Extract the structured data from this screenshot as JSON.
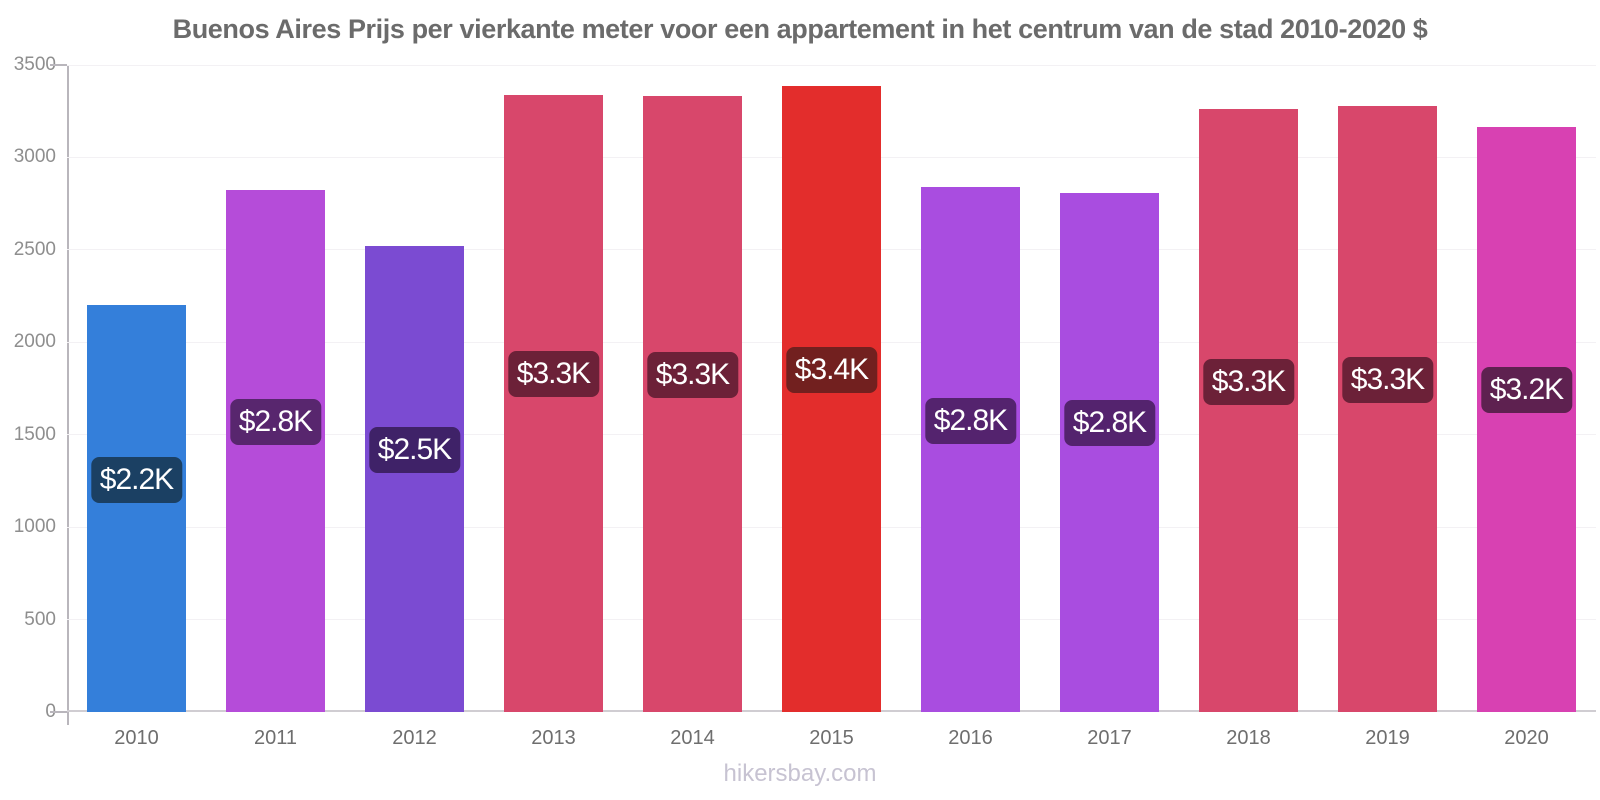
{
  "chart_data": {
    "type": "bar",
    "title": "Buenos Aires Prijs per vierkante meter voor een appartement in het centrum van de stad 2010-2020 $",
    "categories": [
      "2010",
      "2011",
      "2012",
      "2013",
      "2014",
      "2015",
      "2016",
      "2017",
      "2018",
      "2019",
      "2020"
    ],
    "values": [
      2200,
      2825,
      2520,
      3340,
      3335,
      3385,
      2840,
      2810,
      3260,
      3280,
      3165
    ],
    "bar_labels": [
      "$2.2K",
      "$2.8K",
      "$2.5K",
      "$3.3K",
      "$3.3K",
      "$3.4K",
      "$2.8K",
      "$2.8K",
      "$3.3K",
      "$3.3K",
      "$3.2K"
    ],
    "bar_colors": [
      "#347FDA",
      "#B54CD9",
      "#7B4BD2",
      "#D8476B",
      "#D8476B",
      "#E32D2C",
      "#A94DE0",
      "#A94DE0",
      "#D8476B",
      "#D8476B",
      "#D841B2"
    ],
    "bar_label_bg_colors": [
      "#1B4063",
      "#58266E",
      "#3F2268",
      "#6C2138",
      "#6C2138",
      "#72201F",
      "#54236E",
      "#54236E",
      "#6C2138",
      "#6C2138",
      "#5E2150"
    ],
    "xlabel": "",
    "ylabel": "",
    "ylim": [
      0,
      3500
    ],
    "yticks": [
      0,
      500,
      1000,
      1500,
      2000,
      2500,
      3000,
      3500
    ],
    "grid": "horizontal-light",
    "legend": "none"
  },
  "watermark": "hikersbay.com",
  "colors": {
    "background": "#ffffff",
    "axis_line": "#b9b6bc",
    "baseline": "#d0cdd2",
    "gridline": "#f3f1f4",
    "title_text": "#6b6b6b",
    "y_tick_text": "#8e8e8e",
    "x_tick_text": "#6e6e6e",
    "badge_text": "#ffffff",
    "watermark_text": "#c7c3d2"
  }
}
